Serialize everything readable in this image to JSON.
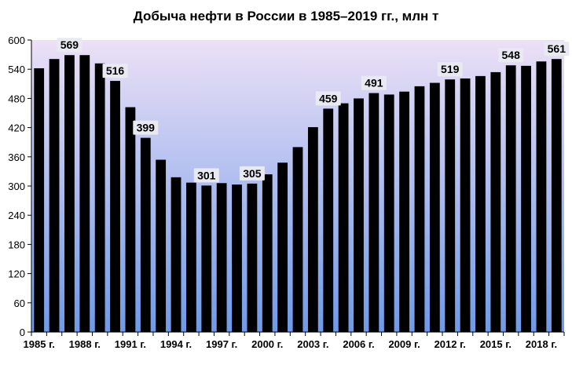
{
  "chart_data": {
    "type": "bar",
    "title": "Добыча нефти в России в 1985–2019 гг., млн т",
    "xlabel": "",
    "ylabel": "",
    "ylim": [
      0,
      600
    ],
    "yticks": [
      0,
      60,
      120,
      180,
      240,
      300,
      360,
      420,
      480,
      540,
      600
    ],
    "grid": false,
    "legend": "none",
    "categories": [
      "1985 г.",
      "1986 г.",
      "1987 г.",
      "1988 г.",
      "1989 г.",
      "1990 г.",
      "1991 г.",
      "1992 г.",
      "1993 г.",
      "1994 г.",
      "1995 г.",
      "1996 г.",
      "1997 г.",
      "1998 г.",
      "1999 г.",
      "2000 г.",
      "2001 г.",
      "2002 г.",
      "2003 г.",
      "2004 г.",
      "2005 г.",
      "2006 г.",
      "2007 г.",
      "2008 г.",
      "2009 г.",
      "2010 г.",
      "2011 г.",
      "2012 г.",
      "2013 г.",
      "2014 г.",
      "2015 г.",
      "2016 г.",
      "2017 г.",
      "2018 г.",
      "2019 г."
    ],
    "tick_labels": [
      "1985 г.",
      "1988 г.",
      "1991 г.",
      "1994 г.",
      "1997 г.",
      "2000 г.",
      "2003 г.",
      "2006 г.",
      "2009 г.",
      "2012 г.",
      "2015 г.",
      "2018 г."
    ],
    "values": [
      542,
      561,
      569,
      569,
      552,
      516,
      462,
      399,
      354,
      318,
      307,
      301,
      306,
      303,
      305,
      324,
      348,
      380,
      421,
      459,
      470,
      480,
      491,
      488,
      494,
      505,
      512,
      519,
      521,
      526,
      534,
      548,
      547,
      556,
      561
    ],
    "data_labels": [
      {
        "year": "1987 г.",
        "text": "569"
      },
      {
        "year": "1990 г.",
        "text": "516"
      },
      {
        "year": "1992 г.",
        "text": "399"
      },
      {
        "year": "1996 г.",
        "text": "301"
      },
      {
        "year": "1999 г.",
        "text": "305"
      },
      {
        "year": "2004 г.",
        "text": "459"
      },
      {
        "year": "2007 г.",
        "text": "491"
      },
      {
        "year": "2012 г.",
        "text": "519"
      },
      {
        "year": "2016 г.",
        "text": "548"
      },
      {
        "year": "2019 г.",
        "text": "561"
      }
    ],
    "colors": {
      "bar": "#000000",
      "plot_top": "#ece0f6",
      "plot_bottom": "#6f9ae8",
      "label_bg": "#e9e9f2"
    }
  }
}
